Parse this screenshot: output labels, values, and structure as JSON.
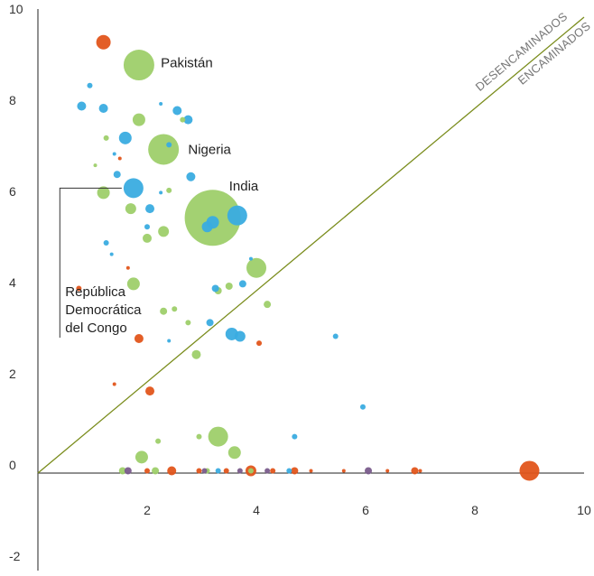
{
  "chart_data": {
    "type": "scatter",
    "title": "",
    "xlabel": "",
    "ylabel": "",
    "xlim": [
      0,
      10
    ],
    "ylim": [
      -2,
      10
    ],
    "x_ticks": [
      2,
      4,
      6,
      8,
      10
    ],
    "y_ticks": [
      -2,
      0,
      2,
      4,
      6,
      8,
      10
    ],
    "reference_line": {
      "from": [
        0,
        0
      ],
      "to": [
        10,
        10
      ],
      "color": "#7a8c1c"
    },
    "region_labels": {
      "above": "DESENCAMINADOS",
      "below": "ENCAMINADOS"
    },
    "colors": {
      "green": "#9ecf6a",
      "blue": "#3aace0",
      "orange": "#e2551b",
      "purple": "#7a5c8c"
    },
    "annotations": [
      {
        "text": "Pakistán",
        "x": 2.25,
        "y": 8.9
      },
      {
        "text": "Nigeria",
        "x": 2.75,
        "y": 7.0
      },
      {
        "text": "India",
        "x": 3.5,
        "y": 6.2
      },
      {
        "lines": [
          "República",
          "Democrática",
          "del Congo"
        ],
        "x": 0.6,
        "y": 4.0,
        "bracket_to": [
          1.7,
          6.25
        ]
      }
    ],
    "points": [
      {
        "x": 1.85,
        "y": 8.95,
        "size": 17,
        "color": "green"
      },
      {
        "x": 3.2,
        "y": 5.6,
        "size": 31,
        "color": "green"
      },
      {
        "x": 2.3,
        "y": 7.1,
        "size": 17,
        "color": "green"
      },
      {
        "x": 4.0,
        "y": 4.5,
        "size": 11,
        "color": "green"
      },
      {
        "x": 3.3,
        "y": 0.8,
        "size": 11,
        "color": "green"
      },
      {
        "x": 3.6,
        "y": 0.45,
        "size": 7,
        "color": "green"
      },
      {
        "x": 1.9,
        "y": 0.35,
        "size": 7,
        "color": "green"
      },
      {
        "x": 1.85,
        "y": 7.75,
        "size": 7,
        "color": "green"
      },
      {
        "x": 1.2,
        "y": 6.15,
        "size": 7,
        "color": "green"
      },
      {
        "x": 1.75,
        "y": 4.15,
        "size": 7,
        "color": "green"
      },
      {
        "x": 1.7,
        "y": 5.8,
        "size": 6,
        "color": "green"
      },
      {
        "x": 2.3,
        "y": 5.3,
        "size": 6,
        "color": "green"
      },
      {
        "x": 2.0,
        "y": 5.15,
        "size": 5,
        "color": "green"
      },
      {
        "x": 2.9,
        "y": 2.6,
        "size": 5,
        "color": "green"
      },
      {
        "x": 3.3,
        "y": 4.0,
        "size": 4,
        "color": "green"
      },
      {
        "x": 3.5,
        "y": 4.1,
        "size": 4,
        "color": "green"
      },
      {
        "x": 4.2,
        "y": 3.7,
        "size": 4,
        "color": "green"
      },
      {
        "x": 2.3,
        "y": 3.55,
        "size": 4,
        "color": "green"
      },
      {
        "x": 2.5,
        "y": 3.6,
        "size": 3,
        "color": "green"
      },
      {
        "x": 2.75,
        "y": 3.3,
        "size": 3,
        "color": "green"
      },
      {
        "x": 2.4,
        "y": 6.2,
        "size": 3,
        "color": "green"
      },
      {
        "x": 2.65,
        "y": 7.75,
        "size": 3,
        "color": "green"
      },
      {
        "x": 1.25,
        "y": 7.35,
        "size": 3,
        "color": "green"
      },
      {
        "x": 1.05,
        "y": 6.75,
        "size": 2,
        "color": "green"
      },
      {
        "x": 2.2,
        "y": 0.7,
        "size": 3,
        "color": "green"
      },
      {
        "x": 1.55,
        "y": 0.05,
        "size": 4,
        "color": "green"
      },
      {
        "x": 2.15,
        "y": 0.05,
        "size": 4,
        "color": "green"
      },
      {
        "x": 3.1,
        "y": 0.05,
        "size": 3,
        "color": "green"
      },
      {
        "x": 3.9,
        "y": 0.05,
        "size": 3,
        "color": "green"
      },
      {
        "x": 2.95,
        "y": 0.8,
        "size": 3,
        "color": "green"
      },
      {
        "x": 1.75,
        "y": 6.25,
        "size": 11,
        "color": "blue"
      },
      {
        "x": 3.65,
        "y": 5.65,
        "size": 11,
        "color": "blue"
      },
      {
        "x": 3.2,
        "y": 5.5,
        "size": 7,
        "color": "blue"
      },
      {
        "x": 3.1,
        "y": 5.4,
        "size": 6,
        "color": "blue"
      },
      {
        "x": 1.6,
        "y": 7.35,
        "size": 7,
        "color": "blue"
      },
      {
        "x": 3.55,
        "y": 3.05,
        "size": 7,
        "color": "blue"
      },
      {
        "x": 3.7,
        "y": 3.0,
        "size": 6,
        "color": "blue"
      },
      {
        "x": 0.8,
        "y": 8.05,
        "size": 5,
        "color": "blue"
      },
      {
        "x": 1.2,
        "y": 8.0,
        "size": 5,
        "color": "blue"
      },
      {
        "x": 2.55,
        "y": 7.95,
        "size": 5,
        "color": "blue"
      },
      {
        "x": 2.75,
        "y": 7.75,
        "size": 5,
        "color": "blue"
      },
      {
        "x": 2.8,
        "y": 6.5,
        "size": 5,
        "color": "blue"
      },
      {
        "x": 2.05,
        "y": 5.8,
        "size": 5,
        "color": "blue"
      },
      {
        "x": 3.15,
        "y": 3.3,
        "size": 4,
        "color": "blue"
      },
      {
        "x": 3.25,
        "y": 4.05,
        "size": 4,
        "color": "blue"
      },
      {
        "x": 3.75,
        "y": 4.15,
        "size": 4,
        "color": "blue"
      },
      {
        "x": 1.45,
        "y": 6.55,
        "size": 4,
        "color": "blue"
      },
      {
        "x": 0.95,
        "y": 8.5,
        "size": 3,
        "color": "blue"
      },
      {
        "x": 2.4,
        "y": 7.2,
        "size": 3,
        "color": "blue"
      },
      {
        "x": 2.0,
        "y": 5.4,
        "size": 3,
        "color": "blue"
      },
      {
        "x": 1.25,
        "y": 5.05,
        "size": 3,
        "color": "blue"
      },
      {
        "x": 1.35,
        "y": 4.8,
        "size": 2,
        "color": "blue"
      },
      {
        "x": 2.25,
        "y": 6.15,
        "size": 2,
        "color": "blue"
      },
      {
        "x": 5.45,
        "y": 3.0,
        "size": 3,
        "color": "blue"
      },
      {
        "x": 5.95,
        "y": 1.45,
        "size": 3,
        "color": "blue"
      },
      {
        "x": 4.7,
        "y": 0.8,
        "size": 3,
        "color": "blue"
      },
      {
        "x": 2.4,
        "y": 2.9,
        "size": 2,
        "color": "blue"
      },
      {
        "x": 3.9,
        "y": 4.7,
        "size": 2,
        "color": "blue"
      },
      {
        "x": 2.25,
        "y": 8.1,
        "size": 2,
        "color": "blue"
      },
      {
        "x": 1.4,
        "y": 7.0,
        "size": 2,
        "color": "blue"
      },
      {
        "x": 3.3,
        "y": 0.05,
        "size": 3,
        "color": "blue"
      },
      {
        "x": 4.6,
        "y": 0.05,
        "size": 3,
        "color": "blue"
      },
      {
        "x": 1.2,
        "y": 9.45,
        "size": 8,
        "color": "orange"
      },
      {
        "x": 9.0,
        "y": 0.05,
        "size": 11,
        "color": "orange"
      },
      {
        "x": 1.85,
        "y": 2.95,
        "size": 5,
        "color": "orange"
      },
      {
        "x": 2.05,
        "y": 1.8,
        "size": 5,
        "color": "orange"
      },
      {
        "x": 2.45,
        "y": 0.05,
        "size": 5,
        "color": "orange"
      },
      {
        "x": 3.9,
        "y": 0.05,
        "size": 6,
        "color": "orange"
      },
      {
        "x": 4.7,
        "y": 0.05,
        "size": 4,
        "color": "orange"
      },
      {
        "x": 6.9,
        "y": 0.05,
        "size": 4,
        "color": "orange"
      },
      {
        "x": 0.75,
        "y": 4.05,
        "size": 3,
        "color": "orange"
      },
      {
        "x": 4.05,
        "y": 2.85,
        "size": 3,
        "color": "orange"
      },
      {
        "x": 1.65,
        "y": 4.5,
        "size": 2,
        "color": "orange"
      },
      {
        "x": 1.5,
        "y": 6.9,
        "size": 2,
        "color": "orange"
      },
      {
        "x": 1.4,
        "y": 1.95,
        "size": 2,
        "color": "orange"
      },
      {
        "x": 2.0,
        "y": 0.05,
        "size": 3,
        "color": "orange"
      },
      {
        "x": 2.95,
        "y": 0.05,
        "size": 3,
        "color": "orange"
      },
      {
        "x": 3.45,
        "y": 0.05,
        "size": 3,
        "color": "orange"
      },
      {
        "x": 4.3,
        "y": 0.05,
        "size": 3,
        "color": "orange"
      },
      {
        "x": 5.0,
        "y": 0.05,
        "size": 2,
        "color": "orange"
      },
      {
        "x": 5.6,
        "y": 0.05,
        "size": 2,
        "color": "orange"
      },
      {
        "x": 6.4,
        "y": 0.05,
        "size": 2,
        "color": "orange"
      },
      {
        "x": 7.0,
        "y": 0.05,
        "size": 2,
        "color": "orange"
      },
      {
        "x": 1.65,
        "y": 0.05,
        "size": 4,
        "color": "purple"
      },
      {
        "x": 3.7,
        "y": 0.05,
        "size": 3,
        "color": "purple"
      },
      {
        "x": 6.05,
        "y": 0.05,
        "size": 4,
        "color": "purple"
      },
      {
        "x": 3.05,
        "y": 0.05,
        "size": 3,
        "color": "purple"
      },
      {
        "x": 4.2,
        "y": 0.05,
        "size": 3,
        "color": "purple"
      }
    ]
  }
}
